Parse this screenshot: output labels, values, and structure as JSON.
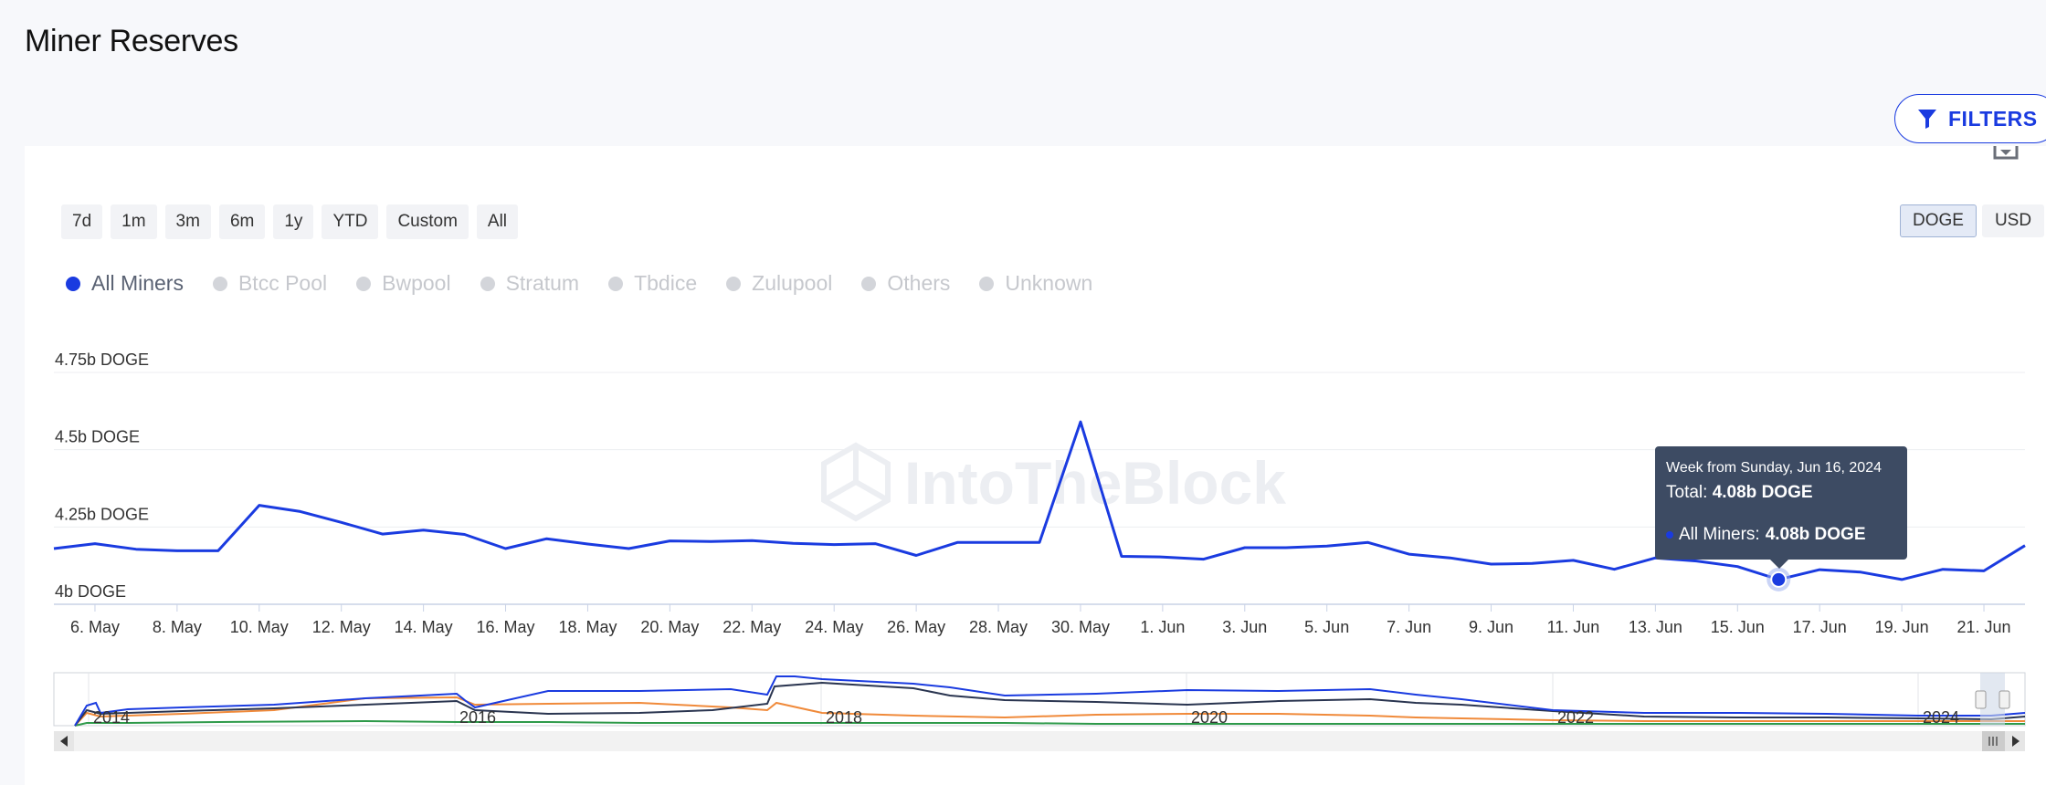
{
  "page": {
    "title": "Miner Reserves"
  },
  "filters": {
    "label": "FILTERS",
    "icon": "filter-icon"
  },
  "export": {
    "icon": "download-icon"
  },
  "range_buttons": [
    "7d",
    "1m",
    "3m",
    "6m",
    "1y",
    "YTD",
    "Custom",
    "All"
  ],
  "unit_buttons": [
    {
      "label": "DOGE",
      "active": true
    },
    {
      "label": "USD",
      "active": false
    }
  ],
  "legend": [
    {
      "label": "All Miners",
      "active": true
    },
    {
      "label": "Btcc Pool",
      "active": false
    },
    {
      "label": "Bwpool",
      "active": false
    },
    {
      "label": "Stratum",
      "active": false
    },
    {
      "label": "Tbdice",
      "active": false
    },
    {
      "label": "Zulupool",
      "active": false
    },
    {
      "label": "Others",
      "active": false
    },
    {
      "label": "Unknown",
      "active": false
    }
  ],
  "watermark": "IntoTheBlock",
  "tooltip": {
    "header": "Week from Sunday, Jun 16, 2024",
    "total_label": "Total:",
    "total_value": "4.08b DOGE",
    "series_label": "All Miners:",
    "series_value": "4.08b DOGE"
  },
  "colors": {
    "accent": "#1a3be0",
    "series_orange": "#f08a3a",
    "series_green": "#2e9a4a",
    "series_dark": "#2a3550"
  },
  "navigator": {
    "year_labels": [
      "2014",
      "2016",
      "2018",
      "2020",
      "2022",
      "2024"
    ]
  },
  "chart_data": {
    "type": "line",
    "title": "",
    "xlabel": "",
    "ylabel": "",
    "y_unit": "DOGE",
    "ylim": [
      4.0,
      4.75
    ],
    "y_ticks": [
      {
        "value": 4.0,
        "label": "4b DOGE"
      },
      {
        "value": 4.25,
        "label": "4.25b DOGE"
      },
      {
        "value": 4.5,
        "label": "4.5b DOGE"
      },
      {
        "value": 4.75,
        "label": "4.75b DOGE"
      }
    ],
    "x_tick_labels": [
      "6. May",
      "8. May",
      "10. May",
      "12. May",
      "14. May",
      "16. May",
      "18. May",
      "20. May",
      "22. May",
      "24. May",
      "26. May",
      "28. May",
      "30. May",
      "1. Jun",
      "3. Jun",
      "5. Jun",
      "7. Jun",
      "9. Jun",
      "11. Jun",
      "13. Jun",
      "15. Jun",
      "17. Jun",
      "19. Jun",
      "21. Jun"
    ],
    "x_start": "5. May",
    "grid": "horizontal",
    "legend_position": "top-left",
    "series": [
      {
        "name": "All Miners",
        "x": [
          "5. May",
          "6. May",
          "7. May",
          "8. May",
          "9. May",
          "10. May",
          "11. May",
          "12. May",
          "13. May",
          "14. May",
          "15. May",
          "16. May",
          "17. May",
          "18. May",
          "19. May",
          "20. May",
          "21. May",
          "22. May",
          "23. May",
          "24. May",
          "25. May",
          "26. May",
          "27. May",
          "28. May",
          "29. May",
          "30. May",
          "31. May",
          "1. Jun",
          "2. Jun",
          "3. Jun",
          "4. Jun",
          "5. Jun",
          "6. Jun",
          "7. Jun",
          "8. Jun",
          "9. Jun",
          "10. Jun",
          "11. Jun",
          "12. Jun",
          "13. Jun",
          "14. Jun",
          "15. Jun",
          "16. Jun",
          "17. Jun",
          "18. Jun",
          "19. Jun",
          "20. Jun",
          "21. Jun",
          "22. Jun"
        ],
        "values": [
          4.18,
          4.196,
          4.178,
          4.173,
          4.173,
          4.32,
          4.3,
          4.265,
          4.227,
          4.24,
          4.226,
          4.18,
          4.212,
          4.195,
          4.18,
          4.205,
          4.203,
          4.206,
          4.197,
          4.193,
          4.196,
          4.158,
          4.2,
          4.2,
          4.2,
          4.59,
          4.155,
          4.153,
          4.146,
          4.183,
          4.183,
          4.188,
          4.2,
          4.162,
          4.15,
          4.13,
          4.132,
          4.142,
          4.113,
          4.15,
          4.14,
          4.122,
          4.08,
          4.112,
          4.104,
          4.08,
          4.113,
          4.108,
          4.19
        ]
      }
    ],
    "highlight": {
      "x": "16. Jun",
      "value": 4.08
    }
  }
}
